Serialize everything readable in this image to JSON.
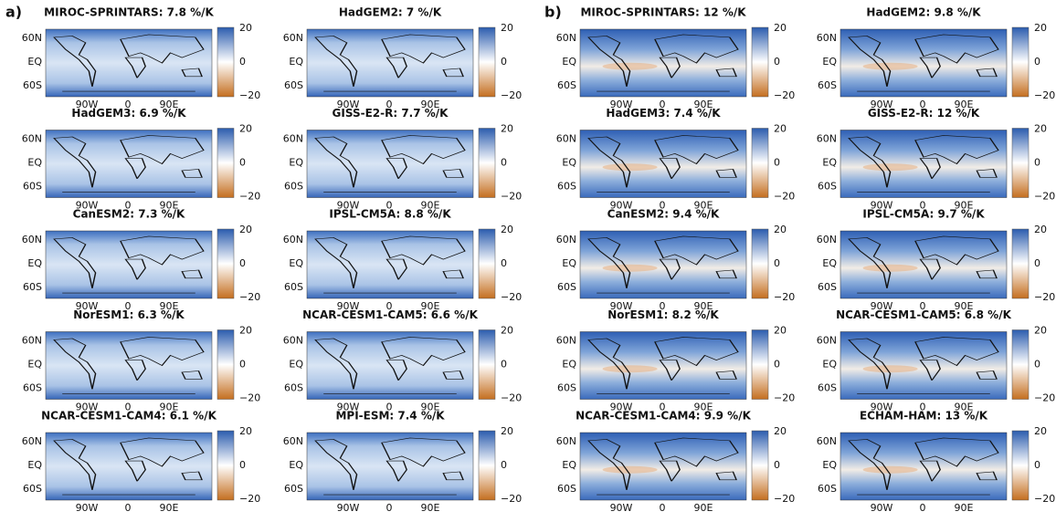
{
  "panels": [
    {
      "label": "a)",
      "maps": [
        {
          "title": "MIROC-SPRINTARS: 7.8 %/K"
        },
        {
          "title": "HadGEM2: 7 %/K"
        },
        {
          "title": "HadGEM3: 6.9 %/K"
        },
        {
          "title": "GISS-E2-R: 7.7 %/K"
        },
        {
          "title": "CanESM2: 7.3 %/K"
        },
        {
          "title": "IPSL-CM5A: 8.8 %/K"
        },
        {
          "title": "NorESM1: 6.3 %/K"
        },
        {
          "title": "NCAR-CESM1-CAM5: 6.6 %/K"
        },
        {
          "title": "NCAR-CESM1-CAM4: 6.1 %/K"
        },
        {
          "title": "MPI-ESM: 7.4 %/K"
        }
      ]
    },
    {
      "label": "b)",
      "maps": [
        {
          "title": "MIROC-SPRINTARS: 12 %/K"
        },
        {
          "title": "HadGEM2: 9.8 %/K"
        },
        {
          "title": "HadGEM3: 7.4 %/K"
        },
        {
          "title": "GISS-E2-R: 12 %/K"
        },
        {
          "title": "CanESM2: 9.4 %/K"
        },
        {
          "title": "IPSL-CM5A: 9.7 %/K"
        },
        {
          "title": "NorESM1: 8.2 %/K"
        },
        {
          "title": "NCAR-CESM1-CAM5: 6.8 %/K"
        },
        {
          "title": "NCAR-CESM1-CAM4: 9.9 %/K"
        },
        {
          "title": "ECHAM-HAM: 13 %/K"
        }
      ]
    }
  ],
  "lat_labels": [
    "60N",
    "EQ",
    "60S"
  ],
  "lon_labels": [
    "90W",
    "0",
    "90E"
  ],
  "colorbar_ticks": [
    "20",
    "0",
    "−20"
  ]
}
